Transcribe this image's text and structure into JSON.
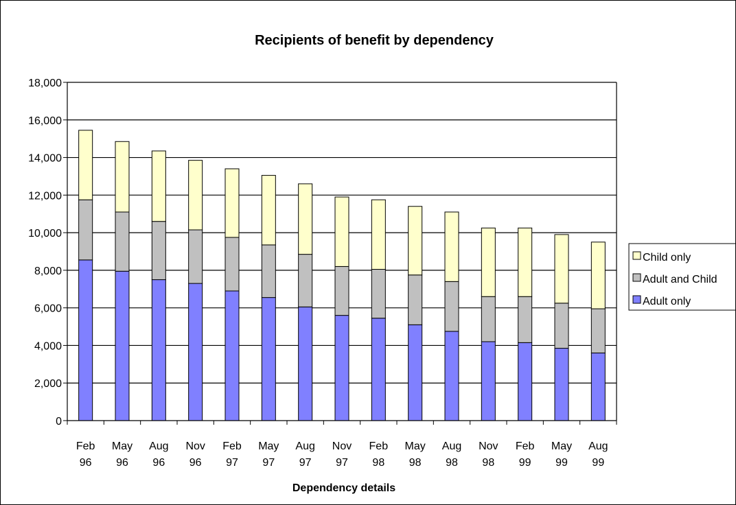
{
  "chart_data": {
    "type": "bar",
    "stacked": true,
    "title": "Recipients of benefit by dependency",
    "xlabel": "Dependency details",
    "ylabel": "",
    "ylim": [
      0,
      18000
    ],
    "ytick_step": 2000,
    "yticks": [
      "0",
      "2,000",
      "4,000",
      "6,000",
      "8,000",
      "10,000",
      "12,000",
      "14,000",
      "16,000",
      "18,000"
    ],
    "grid": true,
    "legend_position": "right",
    "categories": [
      [
        "Feb",
        "96"
      ],
      [
        "May",
        "96"
      ],
      [
        "Aug",
        "96"
      ],
      [
        "Nov",
        "96"
      ],
      [
        "Feb",
        "97"
      ],
      [
        "May",
        "97"
      ],
      [
        "Aug",
        "97"
      ],
      [
        "Nov",
        "97"
      ],
      [
        "Feb",
        "98"
      ],
      [
        "May",
        "98"
      ],
      [
        "Aug",
        "98"
      ],
      [
        "Nov",
        "98"
      ],
      [
        "Feb",
        "99"
      ],
      [
        "May",
        "99"
      ],
      [
        "Aug",
        "99"
      ]
    ],
    "series": [
      {
        "name": "Adult only",
        "color": "#8080ff",
        "values": [
          8550,
          7950,
          7500,
          7300,
          6900,
          6550,
          6050,
          5600,
          5450,
          5100,
          4750,
          4200,
          4150,
          3850,
          3600
        ]
      },
      {
        "name": "Adult and Child",
        "color": "#c0c0c0",
        "values": [
          3200,
          3150,
          3100,
          2850,
          2850,
          2800,
          2800,
          2600,
          2600,
          2650,
          2650,
          2400,
          2450,
          2400,
          2350
        ]
      },
      {
        "name": "Child only",
        "color": "#ffffcc",
        "values": [
          3700,
          3750,
          3750,
          3700,
          3650,
          3700,
          3750,
          3700,
          3700,
          3650,
          3700,
          3650,
          3650,
          3650,
          3550
        ]
      }
    ],
    "legend_order": [
      "Child only",
      "Adult and Child",
      "Adult only"
    ]
  }
}
